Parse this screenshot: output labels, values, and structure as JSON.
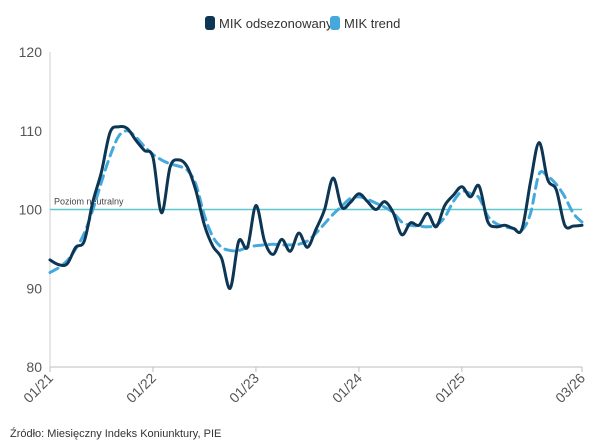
{
  "chart_data": {
    "type": "line",
    "title": "",
    "xlabel": "",
    "ylabel": "",
    "ylim": [
      80,
      120
    ],
    "yticks": [
      80,
      90,
      100,
      110,
      120
    ],
    "x_range": [
      0,
      62
    ],
    "x_ticks": [
      {
        "x": 0,
        "label": "01/21"
      },
      {
        "x": 12,
        "label": "01/22"
      },
      {
        "x": 24,
        "label": "01/23"
      },
      {
        "x": 36,
        "label": "01/24"
      },
      {
        "x": 48,
        "label": "01/25"
      },
      {
        "x": 62,
        "label": "03/26"
      }
    ],
    "legend": {
      "position": "top-center"
    },
    "reference_line": {
      "value": 100,
      "label": "Poziom neutralny",
      "color": "#5cc8cc"
    },
    "series": [
      {
        "name": "MIK odsezonowany",
        "color": "#0d3554",
        "style": "solid",
        "x": [
          0,
          1,
          2,
          3,
          4,
          5,
          6,
          7,
          8,
          9,
          10,
          11,
          12,
          13,
          14,
          15,
          16,
          17,
          18,
          19,
          20,
          21,
          22,
          23,
          24,
          25,
          26,
          27,
          28,
          29,
          30,
          31,
          32,
          33,
          34,
          35,
          36,
          37,
          38,
          39,
          40,
          41,
          42,
          43,
          44,
          45,
          46,
          47,
          48,
          49,
          50,
          51,
          52,
          53,
          54,
          55,
          56,
          57,
          58,
          59,
          60,
          61,
          62
        ],
        "values": [
          93.6,
          93.0,
          93.1,
          95.2,
          96.0,
          101.0,
          104.8,
          109.8,
          110.5,
          110.3,
          108.8,
          107.5,
          106.6,
          99.6,
          105.4,
          106.3,
          105.4,
          102.4,
          98.0,
          95.3,
          93.8,
          90.0,
          96.0,
          95.2,
          100.5,
          96.0,
          94.3,
          96.2,
          94.7,
          97.0,
          95.2,
          97.5,
          100.0,
          104.0,
          100.3,
          100.9,
          102.0,
          101.0,
          100.0,
          101.0,
          99.6,
          96.8,
          98.3,
          98.0,
          99.5,
          97.8,
          100.5,
          101.8,
          102.9,
          101.6,
          103.0,
          98.5,
          97.8,
          98.0,
          97.6,
          97.5,
          103.5,
          108.5,
          103.8,
          102.5,
          98.0,
          97.9,
          98.0
        ]
      },
      {
        "name": "MIK trend",
        "color": "#45a9dd",
        "style": "dashed",
        "x": [
          0,
          1,
          2,
          3,
          4,
          5,
          6,
          7,
          8,
          9,
          10,
          11,
          12,
          13,
          14,
          15,
          16,
          17,
          18,
          19,
          20,
          21,
          22,
          23,
          24,
          25,
          26,
          27,
          28,
          29,
          30,
          31,
          32,
          33,
          34,
          35,
          36,
          37,
          38,
          39,
          40,
          41,
          42,
          43,
          44,
          45,
          46,
          47,
          48,
          49,
          50,
          51,
          52,
          53,
          54,
          55,
          56,
          57,
          58,
          59,
          60,
          61,
          62
        ],
        "values": [
          92.0,
          92.6,
          93.5,
          95.0,
          97.0,
          100.0,
          103.5,
          106.8,
          109.3,
          110.0,
          109.2,
          108.0,
          107.0,
          106.3,
          105.8,
          105.5,
          105.0,
          103.2,
          99.2,
          96.5,
          95.2,
          94.8,
          94.8,
          95.2,
          95.4,
          95.5,
          95.6,
          95.5,
          95.5,
          95.6,
          96.0,
          97.0,
          98.2,
          99.4,
          100.4,
          101.4,
          101.6,
          101.3,
          100.8,
          100.3,
          99.6,
          98.4,
          98.0,
          97.9,
          97.8,
          98.0,
          99.0,
          101.0,
          102.3,
          102.0,
          101.5,
          99.2,
          98.2,
          97.8,
          97.6,
          97.4,
          99.5,
          104.5,
          104.2,
          103.2,
          101.6,
          99.5,
          98.4
        ]
      }
    ]
  },
  "source": "Źródło: Miesięczny Indeks Koniunktury, PIE"
}
